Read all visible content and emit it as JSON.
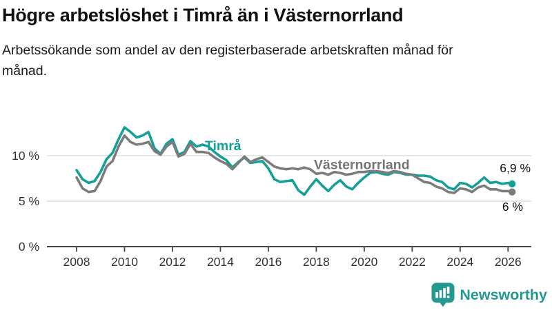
{
  "header": {
    "title": "Högre arbetslöshet i Timrå än i Västernorrland",
    "subtitle": "Arbetssökande som andel av den registerbaserade arbetskraften månad för månad."
  },
  "chart_data": {
    "type": "line",
    "title": "Högre arbetslöshet i Timrå än i Västernorrland",
    "xlabel": "",
    "ylabel": "",
    "ylim": [
      0,
      13.5
    ],
    "xlim": [
      2007.8,
      2026.8
    ],
    "grid": "horizontal",
    "legend_position": "inline-labels",
    "colors": {
      "grid": "#d9d9d9",
      "axis": "#474747",
      "tick_text": "#333333",
      "annotation_text": "#111111"
    },
    "xticks": [
      2008,
      2010,
      2012,
      2014,
      2016,
      2018,
      2020,
      2022,
      2024,
      2026
    ],
    "yticks": [
      {
        "value": 0,
        "label": "0 %"
      },
      {
        "value": 5,
        "label": "5 %"
      },
      {
        "value": 10,
        "label": "10 %"
      }
    ],
    "x": [
      2008,
      2008.25,
      2008.5,
      2008.75,
      2009,
      2009.25,
      2009.5,
      2009.75,
      2010,
      2010.25,
      2010.5,
      2010.75,
      2011,
      2011.25,
      2011.5,
      2011.75,
      2012,
      2012.25,
      2012.5,
      2012.75,
      2013,
      2013.25,
      2013.5,
      2013.75,
      2014,
      2014.25,
      2014.5,
      2014.75,
      2015,
      2015.25,
      2015.5,
      2015.75,
      2016,
      2016.25,
      2016.5,
      2016.75,
      2017,
      2017.25,
      2017.5,
      2017.75,
      2018,
      2018.25,
      2018.5,
      2018.75,
      2019,
      2019.25,
      2019.5,
      2019.75,
      2020,
      2020.25,
      2020.5,
      2020.75,
      2021,
      2021.25,
      2021.5,
      2021.75,
      2022,
      2022.25,
      2022.5,
      2022.75,
      2023,
      2023.25,
      2023.5,
      2023.75,
      2024,
      2024.25,
      2024.5,
      2024.75,
      2025,
      2025.25,
      2025.5,
      2025.75,
      2026,
      2026.17
    ],
    "series": [
      {
        "id": "timra",
        "name": "Timrå",
        "color": "#14a096",
        "label_color": "#14a096",
        "end_label": "6,9 %",
        "last_value": 6.9,
        "label_at": {
          "x": 2013.35,
          "y": 10.6
        },
        "end_label_at": {
          "x": 769,
          "y": 250
        },
        "values": [
          8.4,
          7.4,
          7.0,
          7.2,
          8.2,
          9.6,
          10.3,
          11.8,
          13.1,
          12.6,
          12.0,
          12.2,
          12.6,
          10.8,
          10.2,
          11.3,
          11.8,
          10.1,
          10.4,
          11.6,
          11.0,
          11.2,
          11.0,
          10.4,
          9.9,
          9.5,
          8.7,
          9.3,
          9.8,
          9.2,
          9.3,
          9.4,
          8.6,
          7.4,
          7.1,
          7.2,
          7.3,
          6.2,
          5.7,
          6.6,
          7.4,
          6.7,
          6.1,
          6.8,
          7.3,
          6.6,
          6.3,
          7.0,
          7.6,
          8.1,
          8.2,
          8.0,
          7.9,
          8.2,
          8.1,
          7.9,
          7.9,
          7.8,
          7.8,
          7.7,
          7.3,
          7.1,
          6.5,
          6.3,
          7.0,
          6.9,
          6.5,
          7.0,
          7.6,
          7.0,
          7.1,
          6.9,
          7.0,
          6.9
        ]
      },
      {
        "id": "vasternorrland",
        "name": "Västernorrland",
        "color": "#7c7c7c",
        "label_color": "#757575",
        "end_label": "6 %",
        "last_value": 6.0,
        "label_at": {
          "x": 2017.9,
          "y": 8.5
        },
        "end_label_at": {
          "x": 758,
          "y": 306
        },
        "values": [
          7.6,
          6.4,
          6.0,
          6.1,
          7.2,
          8.8,
          9.4,
          11.0,
          12.2,
          11.5,
          11.2,
          11.3,
          11.5,
          10.5,
          10.1,
          11.0,
          11.5,
          9.9,
          10.2,
          11.3,
          10.4,
          10.4,
          10.3,
          9.8,
          9.4,
          9.1,
          8.5,
          9.2,
          9.9,
          9.3,
          9.6,
          9.8,
          9.3,
          8.8,
          8.6,
          8.5,
          8.6,
          8.5,
          8.7,
          8.5,
          8.0,
          8.1,
          7.9,
          8.2,
          8.1,
          7.9,
          8.0,
          8.2,
          8.2,
          8.3,
          8.3,
          8.2,
          8.1,
          8.3,
          8.2,
          8.0,
          7.9,
          7.5,
          7.1,
          7.0,
          6.6,
          6.4,
          6.0,
          5.9,
          6.4,
          6.3,
          6.0,
          6.5,
          6.7,
          6.3,
          6.3,
          6.1,
          6.1,
          6.0
        ]
      }
    ]
  },
  "footer": {
    "brand": "Newsworthy",
    "brand_color": "#23998f",
    "logo_icon": "bar-chart-speech-bubble-icon"
  }
}
